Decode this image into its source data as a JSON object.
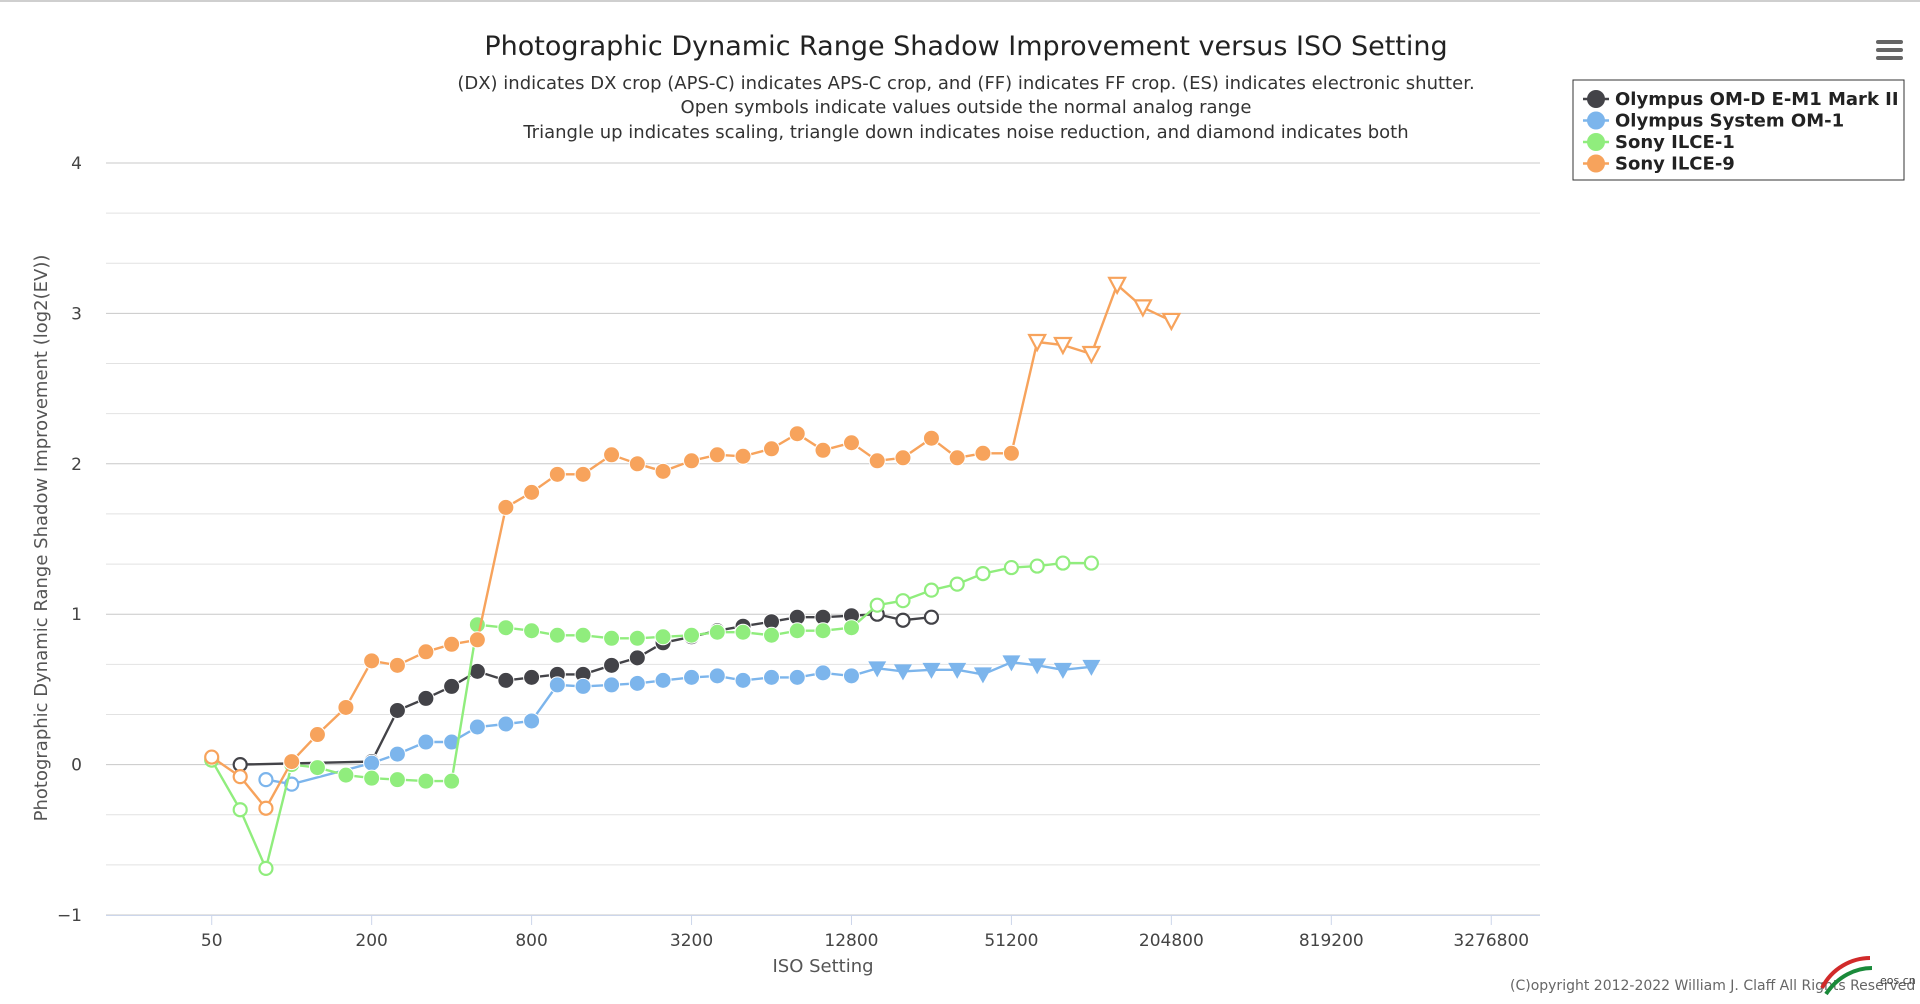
{
  "menu": {
    "icon": "hamburger-menu-icon"
  },
  "credit": "(C)opyright 2012-2022 William J. Claff All Rights Reserved",
  "watermark": "eos.cn",
  "chart_data": {
    "type": "line",
    "title": "Photographic Dynamic Range Shadow Improvement versus ISO Setting",
    "subtitle": [
      "(DX) indicates DX crop (APS-C) indicates APS-C crop, and (FF) indicates FF crop. (ES) indicates electronic shutter.",
      "Open symbols indicate values outside the normal analog range",
      "Triangle up indicates scaling, triangle down indicates noise reduction, and diamond indicates both"
    ],
    "xlabel": "ISO Setting",
    "ylabel": "Photographic Dynamic Range Shadow Improvement (log2(EV))",
    "x_scale": "log2",
    "xlim": [
      20,
      5000000
    ],
    "ylim": [
      -1,
      4
    ],
    "x_ticks": [
      50,
      200,
      800,
      3200,
      12800,
      51200,
      204800,
      819200,
      3276800
    ],
    "y_ticks": [
      -1,
      0,
      1,
      2,
      3,
      4
    ],
    "legend_position": "top-right",
    "series": [
      {
        "name": "Olympus OM-D E-M1 Mark II",
        "color": "#434348",
        "points": [
          {
            "x": 64,
            "y": 0.0,
            "m": "open"
          },
          {
            "x": 200,
            "y": 0.02,
            "m": "filled"
          },
          {
            "x": 250,
            "y": 0.36,
            "m": "filled"
          },
          {
            "x": 320,
            "y": 0.44,
            "m": "filled"
          },
          {
            "x": 400,
            "y": 0.52,
            "m": "filled"
          },
          {
            "x": 500,
            "y": 0.62,
            "m": "filled"
          },
          {
            "x": 640,
            "y": 0.56,
            "m": "filled"
          },
          {
            "x": 800,
            "y": 0.58,
            "m": "filled"
          },
          {
            "x": 1000,
            "y": 0.6,
            "m": "filled"
          },
          {
            "x": 1250,
            "y": 0.6,
            "m": "filled"
          },
          {
            "x": 1600,
            "y": 0.66,
            "m": "filled"
          },
          {
            "x": 2000,
            "y": 0.71,
            "m": "filled"
          },
          {
            "x": 2500,
            "y": 0.81,
            "m": "filled"
          },
          {
            "x": 3200,
            "y": 0.85,
            "m": "filled"
          },
          {
            "x": 4000,
            "y": 0.89,
            "m": "filled"
          },
          {
            "x": 5000,
            "y": 0.92,
            "m": "filled"
          },
          {
            "x": 6400,
            "y": 0.95,
            "m": "filled"
          },
          {
            "x": 8000,
            "y": 0.98,
            "m": "filled"
          },
          {
            "x": 10000,
            "y": 0.98,
            "m": "filled"
          },
          {
            "x": 12800,
            "y": 0.99,
            "m": "filled"
          },
          {
            "x": 16000,
            "y": 1.0,
            "m": "open"
          },
          {
            "x": 20000,
            "y": 0.96,
            "m": "open"
          },
          {
            "x": 25600,
            "y": 0.98,
            "m": "open"
          }
        ]
      },
      {
        "name": "Olympus System OM-1",
        "color": "#7cb5ec",
        "points": [
          {
            "x": 80,
            "y": -0.1,
            "m": "open"
          },
          {
            "x": 100,
            "y": -0.13,
            "m": "open"
          },
          {
            "x": 200,
            "y": 0.01,
            "m": "filled"
          },
          {
            "x": 250,
            "y": 0.07,
            "m": "filled"
          },
          {
            "x": 320,
            "y": 0.15,
            "m": "filled"
          },
          {
            "x": 400,
            "y": 0.15,
            "m": "filled"
          },
          {
            "x": 500,
            "y": 0.25,
            "m": "filled"
          },
          {
            "x": 640,
            "y": 0.27,
            "m": "filled"
          },
          {
            "x": 800,
            "y": 0.29,
            "m": "filled"
          },
          {
            "x": 1000,
            "y": 0.53,
            "m": "filled"
          },
          {
            "x": 1250,
            "y": 0.52,
            "m": "filled"
          },
          {
            "x": 1600,
            "y": 0.53,
            "m": "filled"
          },
          {
            "x": 2000,
            "y": 0.54,
            "m": "filled"
          },
          {
            "x": 2500,
            "y": 0.56,
            "m": "filled"
          },
          {
            "x": 3200,
            "y": 0.58,
            "m": "filled"
          },
          {
            "x": 4000,
            "y": 0.59,
            "m": "filled"
          },
          {
            "x": 5000,
            "y": 0.56,
            "m": "filled"
          },
          {
            "x": 6400,
            "y": 0.58,
            "m": "filled"
          },
          {
            "x": 8000,
            "y": 0.58,
            "m": "filled"
          },
          {
            "x": 10000,
            "y": 0.61,
            "m": "filled"
          },
          {
            "x": 12800,
            "y": 0.59,
            "m": "filled"
          },
          {
            "x": 16000,
            "y": 0.64,
            "m": "tri-down"
          },
          {
            "x": 20000,
            "y": 0.62,
            "m": "tri-down"
          },
          {
            "x": 25600,
            "y": 0.63,
            "m": "tri-down"
          },
          {
            "x": 32000,
            "y": 0.63,
            "m": "tri-down"
          },
          {
            "x": 40000,
            "y": 0.6,
            "m": "tri-down"
          },
          {
            "x": 51200,
            "y": 0.68,
            "m": "tri-down"
          },
          {
            "x": 64000,
            "y": 0.66,
            "m": "tri-down"
          },
          {
            "x": 80000,
            "y": 0.63,
            "m": "tri-down"
          },
          {
            "x": 102400,
            "y": 0.65,
            "m": "tri-down"
          }
        ]
      },
      {
        "name": "Sony ILCE-1",
        "color": "#90ed7d",
        "points": [
          {
            "x": 50,
            "y": 0.03,
            "m": "open"
          },
          {
            "x": 64,
            "y": -0.3,
            "m": "open"
          },
          {
            "x": 80,
            "y": -0.69,
            "m": "open"
          },
          {
            "x": 100,
            "y": 0.0,
            "m": "filled"
          },
          {
            "x": 125,
            "y": -0.02,
            "m": "filled"
          },
          {
            "x": 160,
            "y": -0.07,
            "m": "filled"
          },
          {
            "x": 200,
            "y": -0.09,
            "m": "filled"
          },
          {
            "x": 250,
            "y": -0.1,
            "m": "filled"
          },
          {
            "x": 320,
            "y": -0.11,
            "m": "filled"
          },
          {
            "x": 400,
            "y": -0.11,
            "m": "filled"
          },
          {
            "x": 500,
            "y": 0.93,
            "m": "filled"
          },
          {
            "x": 640,
            "y": 0.91,
            "m": "filled"
          },
          {
            "x": 800,
            "y": 0.89,
            "m": "filled"
          },
          {
            "x": 1000,
            "y": 0.86,
            "m": "filled"
          },
          {
            "x": 1250,
            "y": 0.86,
            "m": "filled"
          },
          {
            "x": 1600,
            "y": 0.84,
            "m": "filled"
          },
          {
            "x": 2000,
            "y": 0.84,
            "m": "filled"
          },
          {
            "x": 2500,
            "y": 0.85,
            "m": "filled"
          },
          {
            "x": 3200,
            "y": 0.86,
            "m": "filled"
          },
          {
            "x": 4000,
            "y": 0.88,
            "m": "filled"
          },
          {
            "x": 5000,
            "y": 0.88,
            "m": "filled"
          },
          {
            "x": 6400,
            "y": 0.86,
            "m": "filled"
          },
          {
            "x": 8000,
            "y": 0.89,
            "m": "filled"
          },
          {
            "x": 10000,
            "y": 0.89,
            "m": "filled"
          },
          {
            "x": 12800,
            "y": 0.91,
            "m": "filled"
          },
          {
            "x": 16000,
            "y": 1.06,
            "m": "open"
          },
          {
            "x": 20000,
            "y": 1.09,
            "m": "open"
          },
          {
            "x": 25600,
            "y": 1.16,
            "m": "open"
          },
          {
            "x": 32000,
            "y": 1.2,
            "m": "open"
          },
          {
            "x": 40000,
            "y": 1.27,
            "m": "open"
          },
          {
            "x": 51200,
            "y": 1.31,
            "m": "open"
          },
          {
            "x": 64000,
            "y": 1.32,
            "m": "open"
          },
          {
            "x": 80000,
            "y": 1.34,
            "m": "open"
          },
          {
            "x": 102400,
            "y": 1.34,
            "m": "open"
          }
        ]
      },
      {
        "name": "Sony ILCE-9",
        "color": "#f7a35c",
        "points": [
          {
            "x": 50,
            "y": 0.05,
            "m": "open"
          },
          {
            "x": 64,
            "y": -0.08,
            "m": "open"
          },
          {
            "x": 80,
            "y": -0.29,
            "m": "open"
          },
          {
            "x": 100,
            "y": 0.02,
            "m": "filled"
          },
          {
            "x": 125,
            "y": 0.2,
            "m": "filled"
          },
          {
            "x": 160,
            "y": 0.38,
            "m": "filled"
          },
          {
            "x": 200,
            "y": 0.69,
            "m": "filled"
          },
          {
            "x": 250,
            "y": 0.66,
            "m": "filled"
          },
          {
            "x": 320,
            "y": 0.75,
            "m": "filled"
          },
          {
            "x": 400,
            "y": 0.8,
            "m": "filled"
          },
          {
            "x": 500,
            "y": 0.83,
            "m": "filled"
          },
          {
            "x": 640,
            "y": 1.71,
            "m": "filled"
          },
          {
            "x": 800,
            "y": 1.81,
            "m": "filled"
          },
          {
            "x": 1000,
            "y": 1.93,
            "m": "filled"
          },
          {
            "x": 1250,
            "y": 1.93,
            "m": "filled"
          },
          {
            "x": 1600,
            "y": 2.06,
            "m": "filled"
          },
          {
            "x": 2000,
            "y": 2.0,
            "m": "filled"
          },
          {
            "x": 2500,
            "y": 1.95,
            "m": "filled"
          },
          {
            "x": 3200,
            "y": 2.02,
            "m": "filled"
          },
          {
            "x": 4000,
            "y": 2.06,
            "m": "filled"
          },
          {
            "x": 5000,
            "y": 2.05,
            "m": "filled"
          },
          {
            "x": 6400,
            "y": 2.1,
            "m": "filled"
          },
          {
            "x": 8000,
            "y": 2.2,
            "m": "filled"
          },
          {
            "x": 10000,
            "y": 2.09,
            "m": "filled"
          },
          {
            "x": 12800,
            "y": 2.14,
            "m": "filled"
          },
          {
            "x": 16000,
            "y": 2.02,
            "m": "filled"
          },
          {
            "x": 20000,
            "y": 2.04,
            "m": "filled"
          },
          {
            "x": 25600,
            "y": 2.17,
            "m": "filled"
          },
          {
            "x": 32000,
            "y": 2.04,
            "m": "filled"
          },
          {
            "x": 40000,
            "y": 2.07,
            "m": "filled"
          },
          {
            "x": 51200,
            "y": 2.07,
            "m": "filled"
          },
          {
            "x": 64000,
            "y": 2.81,
            "m": "tri-down-open"
          },
          {
            "x": 80000,
            "y": 2.79,
            "m": "tri-down-open"
          },
          {
            "x": 102400,
            "y": 2.73,
            "m": "tri-down-open"
          },
          {
            "x": 128000,
            "y": 3.19,
            "m": "tri-down-open"
          },
          {
            "x": 160000,
            "y": 3.04,
            "m": "tri-down-open"
          },
          {
            "x": 204800,
            "y": 2.95,
            "m": "tri-down-open"
          }
        ]
      }
    ]
  }
}
